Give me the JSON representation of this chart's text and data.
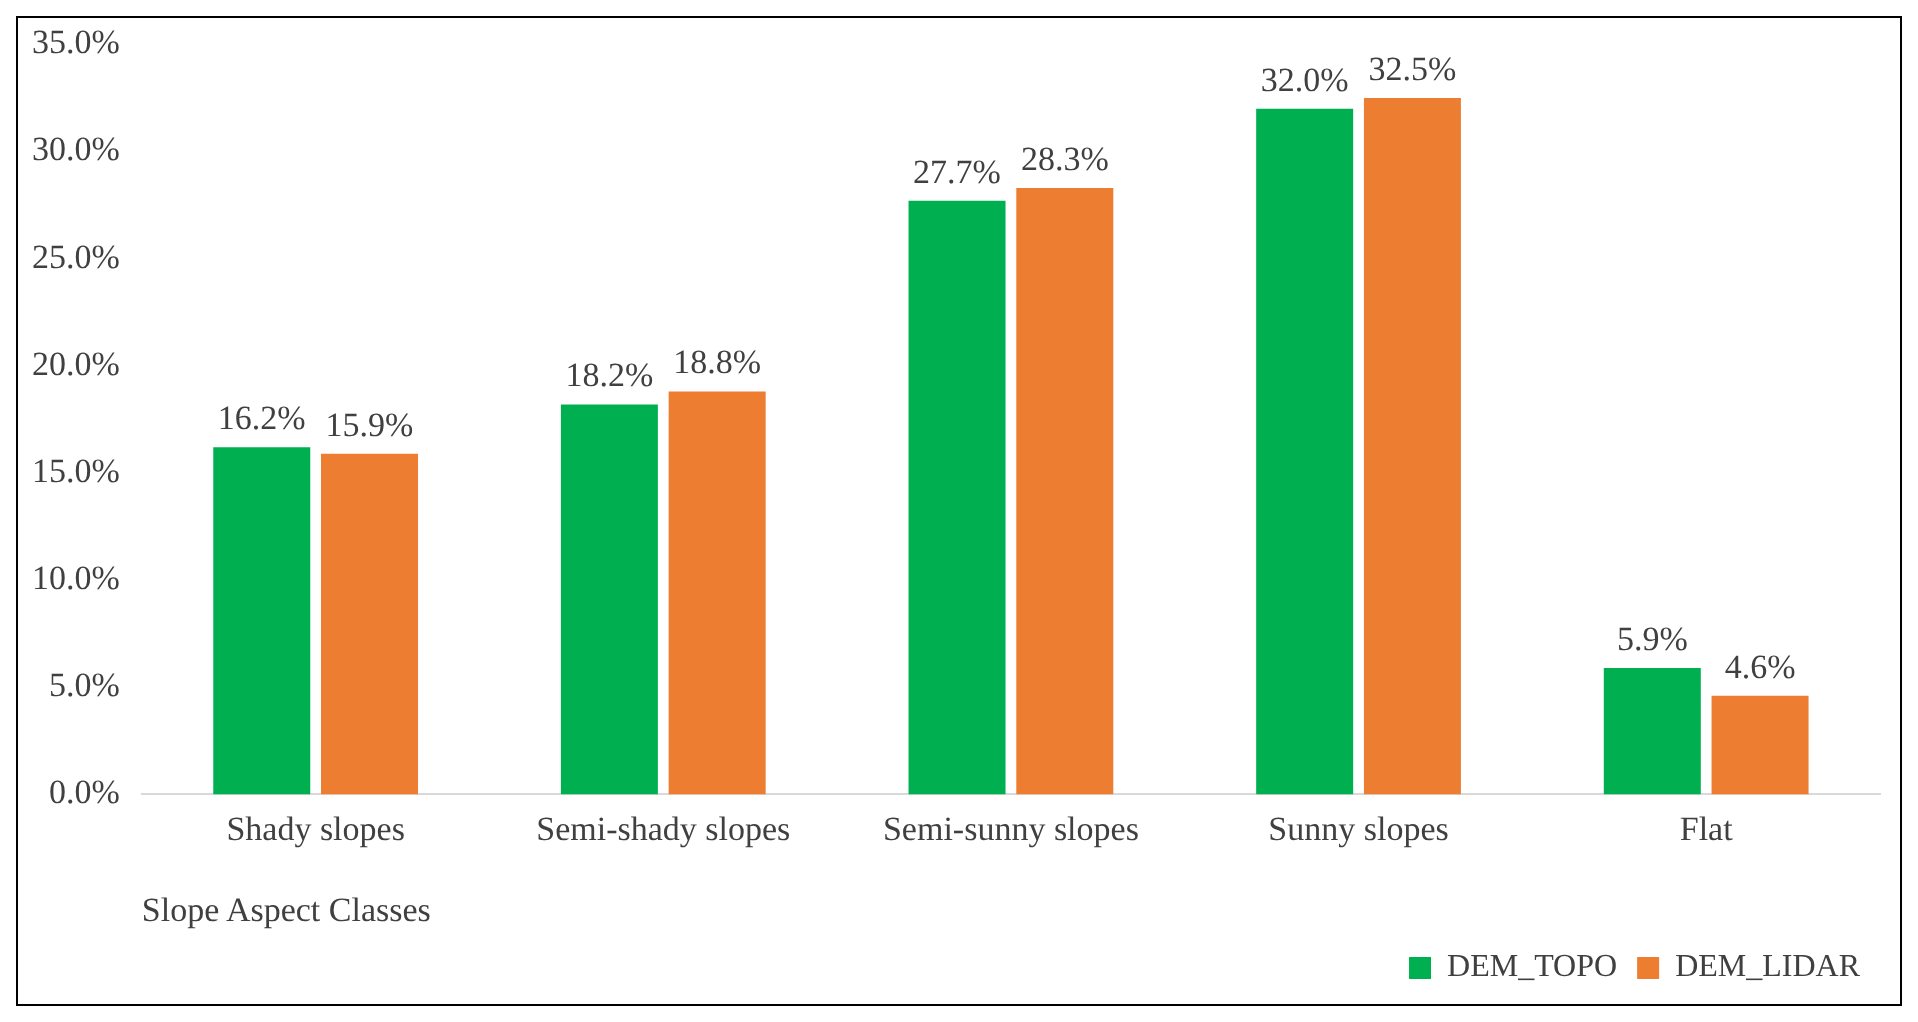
{
  "chart_data": {
    "type": "bar",
    "xlabel": "Slope Aspect Classes",
    "categories": [
      "Shady slopes",
      "Semi-shady slopes",
      "Semi-sunny slopes",
      "Sunny slopes",
      "Flat"
    ],
    "series": [
      {
        "name": "DEM_TOPO",
        "color": "#00b050",
        "values": [
          16.2,
          18.2,
          27.7,
          32.0,
          5.9
        ],
        "value_labels": [
          "16.2%",
          "18.2%",
          "27.7%",
          "32.0%",
          "5.9%"
        ]
      },
      {
        "name": "DEM_LIDAR",
        "color": "#ed7d31",
        "values": [
          15.9,
          18.8,
          28.3,
          32.5,
          4.6
        ],
        "value_labels": [
          "15.9%",
          "18.8%",
          "28.3%",
          "32.5%",
          "4.6%"
        ]
      }
    ],
    "ylim": [
      0,
      35
    ],
    "yticks": [
      {
        "value": 0,
        "label": "0.0%"
      },
      {
        "value": 5,
        "label": "5.0%"
      },
      {
        "value": 10,
        "label": "10.0%"
      },
      {
        "value": 15,
        "label": "15.0%"
      },
      {
        "value": 20,
        "label": "20.0%"
      },
      {
        "value": 25,
        "label": "25.0%"
      },
      {
        "value": 30,
        "label": "30.0%"
      },
      {
        "value": 35,
        "label": "35.0%"
      }
    ],
    "grid": false,
    "legend": "bottom right"
  }
}
